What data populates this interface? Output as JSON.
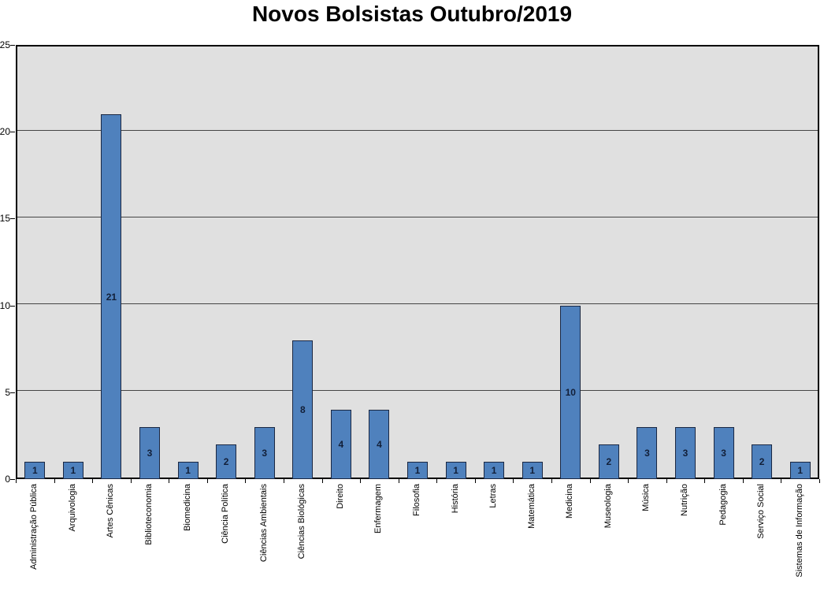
{
  "chart_data": {
    "type": "bar",
    "title": "Novos Bolsistas Outubro/2019",
    "categories": [
      "Administração Pública",
      "Arquivologia",
      "Artes Cênicas",
      "Biblioteconomia",
      "Biomedicina",
      "Ciência Política",
      "Ciências Ambientais",
      "Ciências Biológicas",
      "Direito",
      "Enfermagem",
      "Filosofia",
      "História",
      "Letras",
      "Matemática",
      "Medicina",
      "Museologia",
      "Música",
      "Nutrição",
      "Pedagogia",
      "Serviço Social",
      "Sistemas de Informação"
    ],
    "values": [
      1,
      1,
      21,
      3,
      1,
      2,
      3,
      8,
      4,
      4,
      1,
      1,
      1,
      1,
      10,
      2,
      3,
      3,
      3,
      2,
      1
    ],
    "xlabel": "",
    "ylabel": "",
    "ylim": [
      0,
      25
    ],
    "yticks": [
      0,
      5,
      10,
      15,
      20,
      25
    ],
    "grid": true,
    "legend": "none",
    "data_labels": "inside-center",
    "colors": {
      "bar_fill": "#4F81BD",
      "bar_border": "#1A2742",
      "plot_background": "#E0E0E0",
      "gridline": "#454545",
      "axis": "#000000",
      "title_text": "#000000",
      "label_text": "#121F38"
    }
  }
}
